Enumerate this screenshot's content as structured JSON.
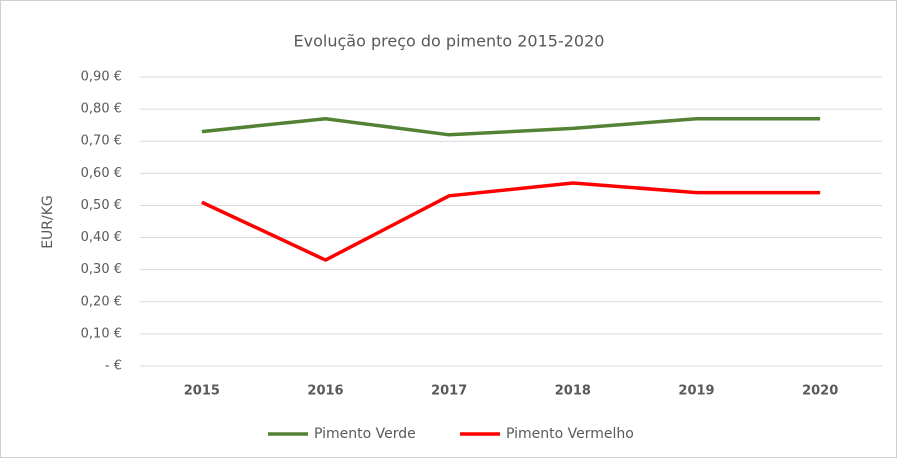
{
  "chart_data": {
    "type": "line",
    "title": "Evolução preço do pimento 2015-2020",
    "ylabel": "EUR/KG",
    "categories": [
      "2015",
      "2016",
      "2017",
      "2018",
      "2019",
      "2020"
    ],
    "series": [
      {
        "name": "Pimento Verde",
        "color": "#548235",
        "values": [
          0.73,
          0.77,
          0.72,
          0.74,
          0.77,
          0.77
        ]
      },
      {
        "name": "Pimento Vermelho",
        "color": "#ff0000",
        "values": [
          0.51,
          0.33,
          0.53,
          0.57,
          0.54,
          0.54
        ]
      }
    ],
    "ylim": [
      0,
      0.9
    ],
    "yticks": [
      {
        "value": 0,
        "label": "-   €"
      },
      {
        "value": 0.1,
        "label": "0,10 €"
      },
      {
        "value": 0.2,
        "label": "0,20 €"
      },
      {
        "value": 0.3,
        "label": "0,30 €"
      },
      {
        "value": 0.4,
        "label": "0,40 €"
      },
      {
        "value": 0.5,
        "label": "0,50 €"
      },
      {
        "value": 0.6,
        "label": "0,60 €"
      },
      {
        "value": 0.7,
        "label": "0,70 €"
      },
      {
        "value": 0.8,
        "label": "0,80 €"
      },
      {
        "value": 0.9,
        "label": "0,90 €"
      }
    ],
    "grid": true,
    "legend": "bottom"
  }
}
